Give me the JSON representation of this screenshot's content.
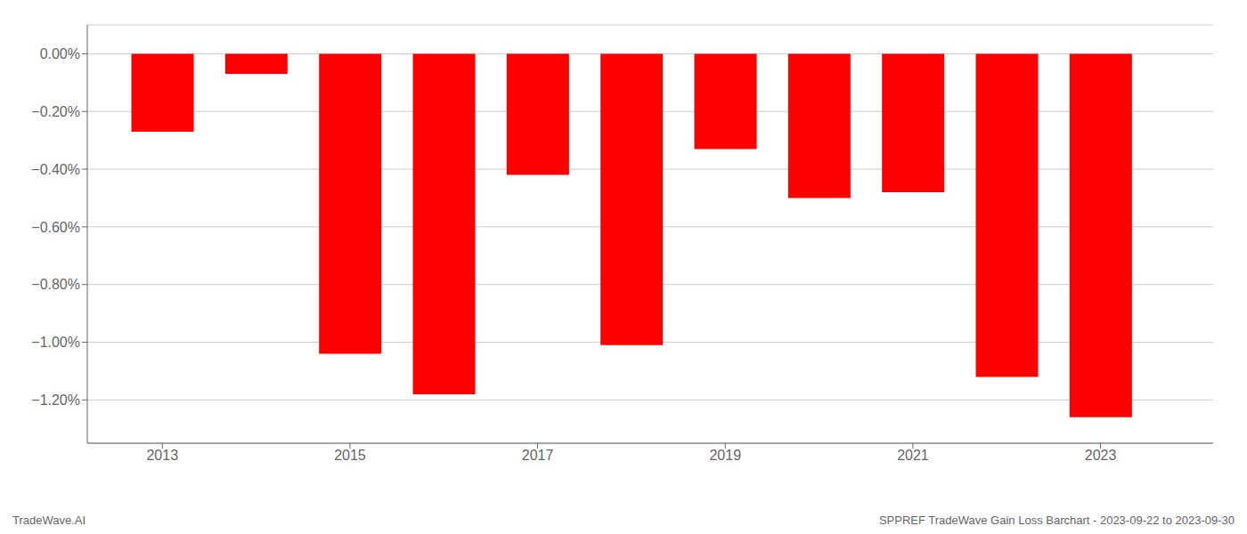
{
  "chart_data": {
    "type": "bar",
    "x": [
      2013,
      2014,
      2015,
      2016,
      2017,
      2018,
      2019,
      2020,
      2021,
      2022,
      2023
    ],
    "values": [
      -0.27,
      -0.07,
      -1.04,
      -1.18,
      -0.42,
      -1.01,
      -0.33,
      -0.5,
      -0.48,
      -1.12,
      -1.26
    ],
    "color": "#ff0000",
    "xlim": [
      2012.2,
      2024.2
    ],
    "xticks": [
      2013,
      2015,
      2017,
      2019,
      2021,
      2023
    ],
    "ylim": [
      -1.35,
      0.1
    ],
    "yticks": [
      {
        "value": 0.0,
        "label": "0.00%"
      },
      {
        "value": -0.2,
        "label": "−0.20%"
      },
      {
        "value": -0.4,
        "label": "−0.40%"
      },
      {
        "value": -0.6,
        "label": "−0.60%"
      },
      {
        "value": -0.8,
        "label": "−0.80%"
      },
      {
        "value": -1.0,
        "label": "−1.00%"
      },
      {
        "value": -1.2,
        "label": "−1.20%"
      }
    ],
    "grid": true,
    "annotations": [
      "TradeWave.AI",
      "SPPREF TradeWave Gain Loss Barchart - 2023-09-22 to 2023-09-30"
    ]
  }
}
